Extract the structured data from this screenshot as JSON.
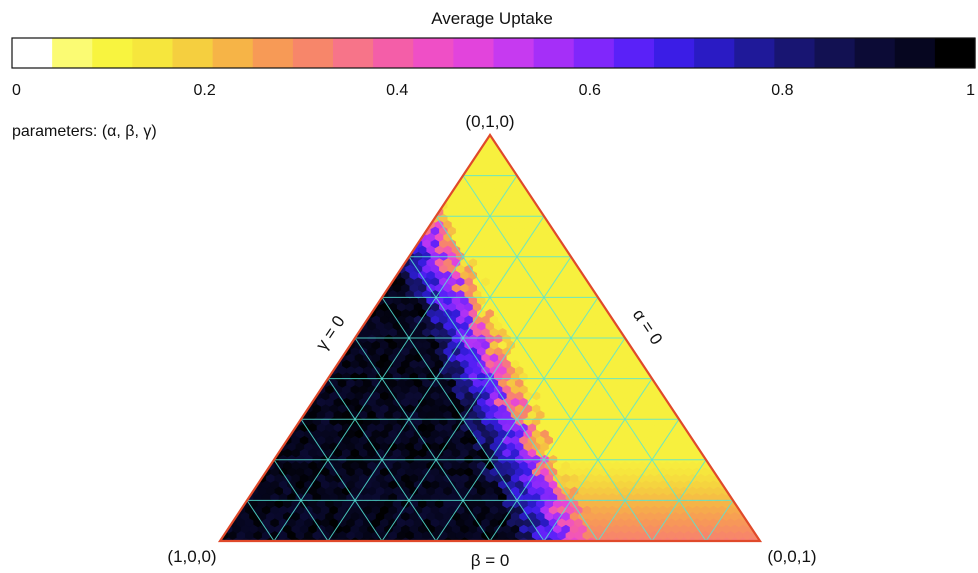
{
  "chart_data": {
    "type": "heatmap",
    "subtype": "ternary",
    "colorbar": {
      "title": "Average Uptake",
      "range": [
        0,
        1
      ],
      "tick_labels": [
        "0",
        "0.2",
        "0.4",
        "0.6",
        "0.8",
        "1"
      ],
      "tick_values": [
        0,
        0.2,
        0.4,
        0.6,
        0.8,
        1
      ],
      "colors": [
        "#ffffff",
        "#fbfb73",
        "#f8f43f",
        "#f6e63d",
        "#f5cf3f",
        "#f6b447",
        "#f79a56",
        "#f7866a",
        "#f77489",
        "#f45ea8",
        "#ef4fc6",
        "#e244dc",
        "#c63af0",
        "#a52ff8",
        "#8027fb",
        "#5a21f8",
        "#3b1de6",
        "#2a1bc4",
        "#1f1999",
        "#181572",
        "#121152",
        "#0c0b36",
        "#060620",
        "#000000"
      ]
    },
    "parameters_note": "parameters: (α, β, γ)",
    "corners": {
      "top": "(0,1,0)",
      "bottom_left": "(1,0,0)",
      "bottom_right": "(0,0,1)"
    },
    "edge_labels": {
      "left": "γ = 0",
      "right": "α = 0",
      "bottom": "β = 0"
    },
    "grid": true,
    "grid_color": "#55e5d6",
    "border_color": "#e0492a",
    "region_summary": "Values near 0.85–1 in the region toward (1,0,0); a sharp transition through 0.5–0.75 along a diagonal band; values near 0.1 toward (0,0,1) and (0,1,0); values near 0.3 near the bottom edge around the middle of β = 0."
  }
}
